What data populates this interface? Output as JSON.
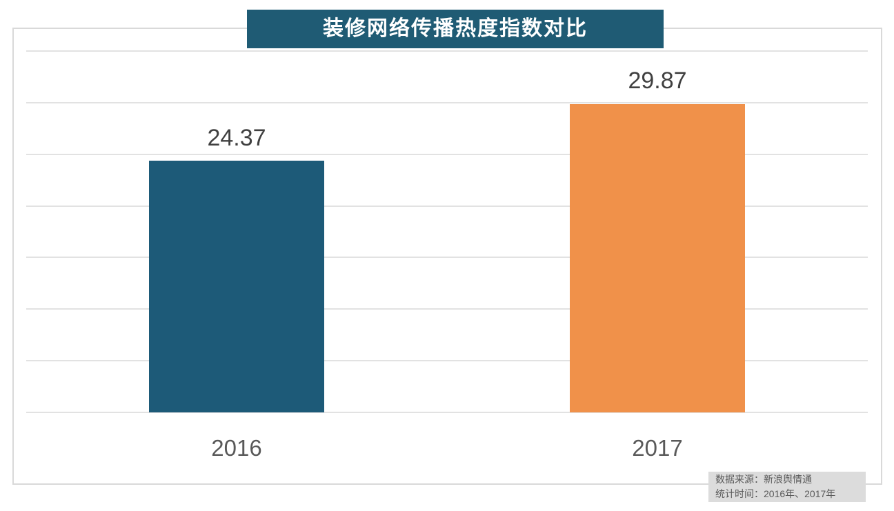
{
  "title_box": {
    "label": "装修网络传播热度指数对比"
  },
  "source_note": {
    "line1": "数据来源：新浪舆情通",
    "line2": "统计时间：2016年、2017年"
  },
  "colors": {
    "title_bg": "#1f5b74",
    "title_text": "#ffffff",
    "bar_2016": "#1d5a78",
    "bar_2017": "#f0914a",
    "gridline": "#e2e2e2",
    "frame_border": "#d9d9d9",
    "value_label": "#404040",
    "axis_label": "#595959",
    "source_bg": "#dcdcdc",
    "source_text": "#595959"
  },
  "chart_data": {
    "type": "bar",
    "title": "装修网络传播热度指数对比",
    "categories": [
      "2016",
      "2017"
    ],
    "values": [
      24.37,
      29.87
    ],
    "data_labels": [
      "24.37",
      "29.87"
    ],
    "bar_colors": [
      "#1d5a78",
      "#f0914a"
    ],
    "xlabel": "",
    "ylabel": "",
    "ylim": [
      0,
      35
    ],
    "grid_step": 5,
    "grid": true,
    "legend": false,
    "y_tick_labels_shown": false,
    "annotations": [
      "数据来源：新浪舆情通",
      "统计时间：2016年、2017年"
    ]
  }
}
